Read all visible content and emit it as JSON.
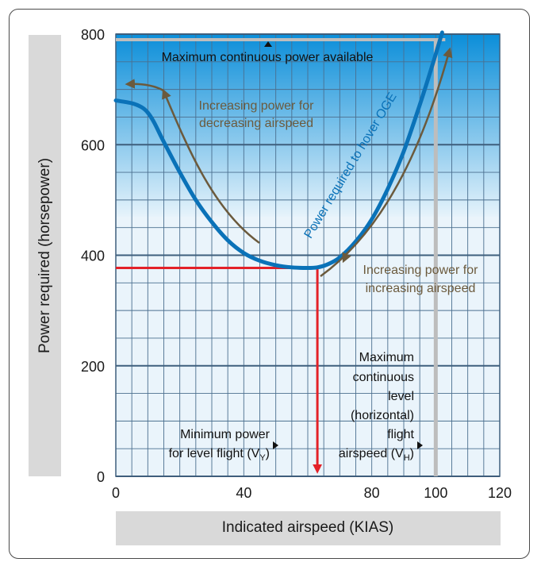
{
  "chart_data": {
    "type": "line",
    "title": "",
    "xlabel": "Indicated airspeed (KIAS)",
    "ylabel": "Power required (horsepower)",
    "xlim": [
      0,
      120
    ],
    "ylim": [
      0,
      800
    ],
    "x_ticks": [
      0,
      20,
      40,
      60,
      80,
      100,
      120
    ],
    "x_tick_labels": [
      "0",
      "",
      "40",
      "",
      "80",
      "100",
      "120"
    ],
    "y_ticks": [
      0,
      200,
      400,
      600,
      800
    ],
    "grid": true,
    "series": [
      {
        "name": "Power required to hover OGE",
        "color": "#0a72b8",
        "x": [
          0,
          5,
          8,
          10,
          12,
          15,
          20,
          25,
          30,
          35,
          40,
          45,
          50,
          55,
          60,
          63,
          66,
          70,
          75,
          80,
          85,
          90,
          95,
          99,
          102
        ],
        "y": [
          680,
          675,
          668,
          658,
          640,
          605,
          550,
          500,
          460,
          427,
          404,
          390,
          382,
          378,
          377,
          378,
          383,
          396,
          425,
          465,
          520,
          588,
          672,
          745,
          803
        ]
      }
    ],
    "reference_lines": {
      "max_continuous_power": {
        "label": "Maximum continuous power available",
        "y": 790,
        "color": "#bdbdbd"
      },
      "vh": {
        "label_lines": [
          "Maximum",
          "continuous",
          "level",
          "(horizontal)",
          "flight"
        ],
        "label_last": "airspeed (V",
        "label_sub": "H",
        "label_end": ")",
        "x": 100,
        "color": "#bdbdbd"
      },
      "vy": {
        "label_line1": "Minimum power",
        "label_line2": "for level flight (V",
        "label_sub": "Y",
        "label_end": ")",
        "x": 63,
        "y": 377,
        "color": "#e32128"
      }
    },
    "annotations": [
      {
        "lines": [
          "Increasing power for",
          "decreasing airspeed"
        ],
        "color": "#6b5a3d"
      },
      {
        "lines": [
          "Increasing power for",
          "increasing airspeed"
        ],
        "color": "#6b5a3d"
      }
    ],
    "arrow_color": "#6b5a3d",
    "sky_gradient": [
      "#0b8ed9",
      "#e6f3fb"
    ]
  }
}
